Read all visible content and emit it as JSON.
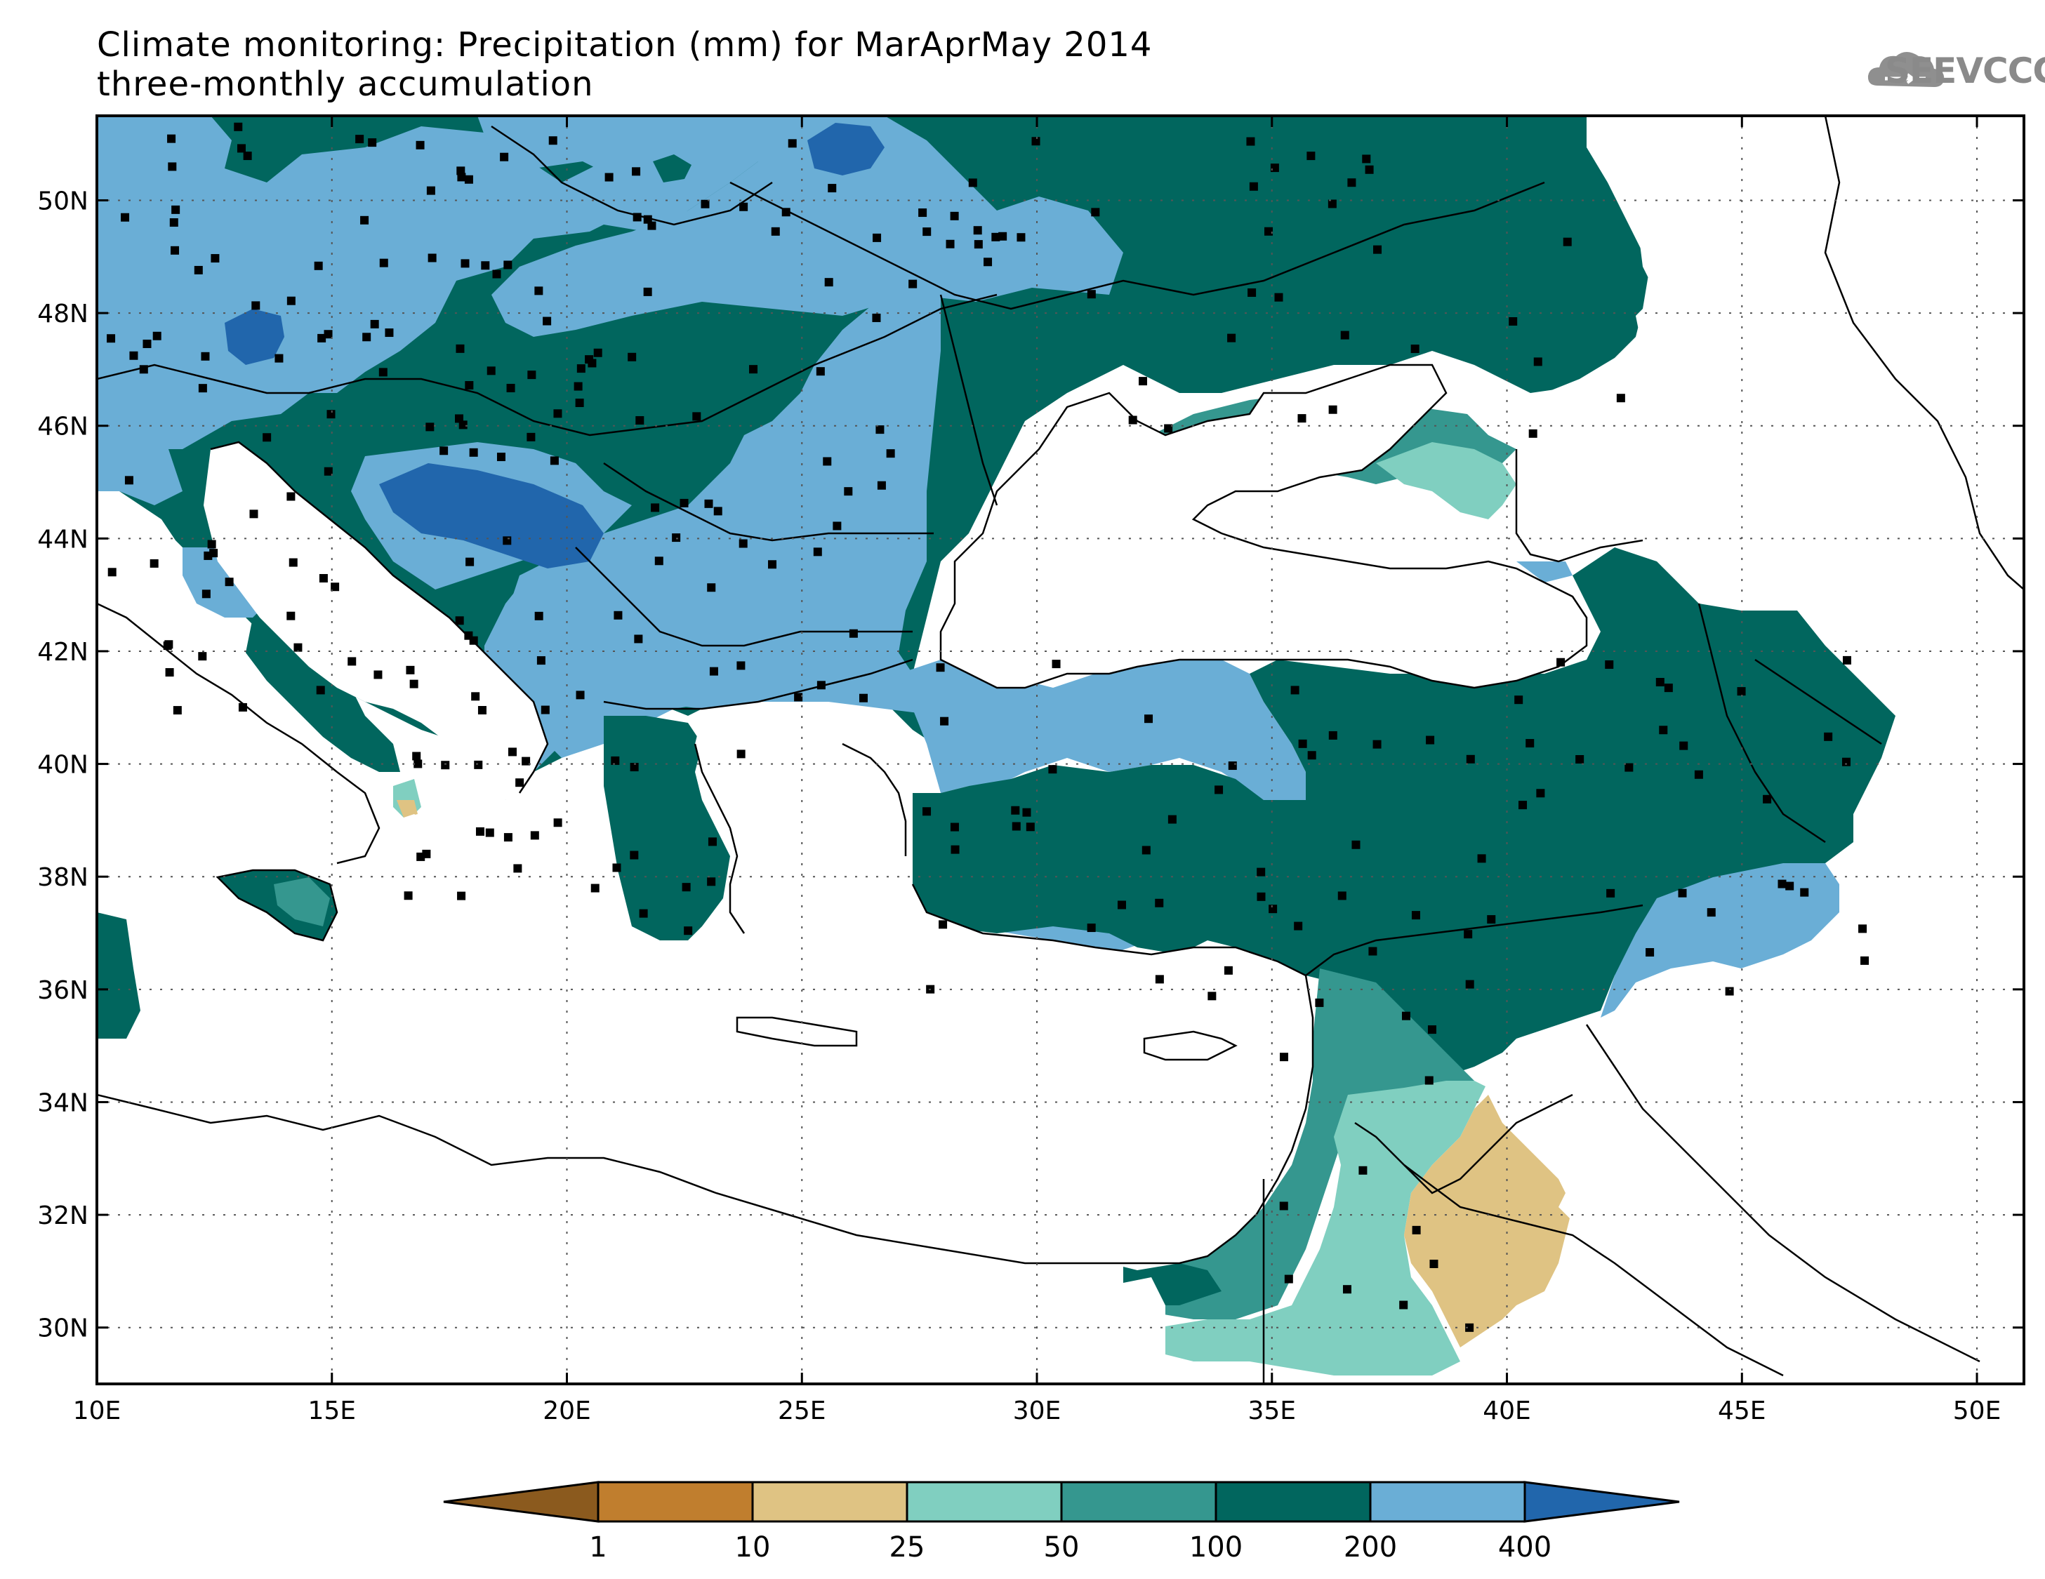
{
  "title": {
    "line1": "Climate monitoring: Precipitation (mm) for MarAprMay 2014",
    "line2": "three-monthly accumulation"
  },
  "logo": {
    "text": "SEEVCCC",
    "icon": "cloud-icon"
  },
  "map": {
    "lon_range": [
      10,
      51
    ],
    "lat_range": [
      29,
      51.5
    ],
    "lon_ticks": [
      "10E",
      "15E",
      "20E",
      "25E",
      "30E",
      "35E",
      "40E",
      "45E",
      "50E"
    ],
    "lat_ticks": [
      "30N",
      "32N",
      "34N",
      "36N",
      "38N",
      "40N",
      "42N",
      "44N",
      "46N",
      "48N",
      "50N"
    ]
  },
  "legend": {
    "thresholds": [
      "1",
      "10",
      "25",
      "50",
      "100",
      "200",
      "400"
    ],
    "colors": [
      "#8b5a1e",
      "#c07e2e",
      "#dfc383",
      "#80cfc0",
      "#35978f",
      "#01665e",
      "#6aaed6",
      "#2166ac"
    ]
  }
}
